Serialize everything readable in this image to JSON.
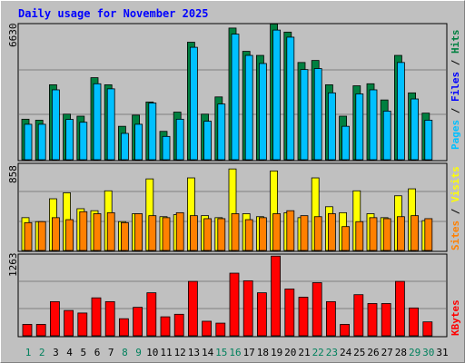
{
  "chart_data": [
    {
      "type": "bar",
      "title": "Daily usage for November 2025",
      "panel": "hits-files-pages",
      "ymax_label": "6630",
      "ymax": 6630,
      "legend": [
        "Pages",
        "Files",
        "Hits"
      ],
      "colors": {
        "hits": "#008040",
        "files": "#00c0ff",
        "pages": "#00c0ff"
      },
      "categories": [
        "1",
        "2",
        "3",
        "4",
        "5",
        "6",
        "7",
        "8",
        "9",
        "10",
        "11",
        "12",
        "13",
        "14",
        "15",
        "16",
        "17",
        "18",
        "19",
        "20",
        "21",
        "22",
        "23",
        "24",
        "25",
        "26",
        "27",
        "28",
        "29",
        "30",
        "31"
      ],
      "series": [
        {
          "name": "Hits",
          "values": [
            2000,
            1950,
            3700,
            2250,
            2150,
            4050,
            3700,
            1650,
            2200,
            2850,
            1400,
            2350,
            5800,
            2250,
            3100,
            6500,
            5350,
            5150,
            6700,
            6300,
            4800,
            4900,
            3700,
            2150,
            3650,
            3750,
            2950,
            5150,
            3300,
            2300,
            0
          ]
        },
        {
          "name": "Files",
          "values": [
            1750,
            1750,
            3450,
            1990,
            1850,
            3750,
            3500,
            1300,
            1750,
            2800,
            1150,
            2000,
            5550,
            1900,
            2750,
            6200,
            5150,
            4750,
            6400,
            6050,
            4450,
            4500,
            3300,
            1650,
            3250,
            3450,
            2400,
            4800,
            3000,
            1950,
            0
          ]
        },
        {
          "name": "Pages",
          "values": [
            1750,
            1750,
            3450,
            1990,
            1850,
            3750,
            3500,
            1300,
            1750,
            2800,
            1150,
            2000,
            5550,
            1900,
            2750,
            6200,
            5150,
            4750,
            6400,
            6050,
            4450,
            4500,
            3300,
            1650,
            3250,
            3450,
            2400,
            4800,
            3000,
            1950,
            0
          ]
        }
      ]
    },
    {
      "type": "bar",
      "panel": "visits-sites",
      "ymax_label": "858",
      "ymax": 858,
      "legend": [
        "Sites",
        "Visits"
      ],
      "colors": {
        "visits": "#ffff00",
        "sites": "#ff8000"
      },
      "series": [
        {
          "name": "Visits",
          "values": [
            330,
            290,
            520,
            580,
            420,
            400,
            600,
            290,
            370,
            720,
            340,
            360,
            730,
            350,
            330,
            820,
            370,
            340,
            800,
            380,
            330,
            730,
            440,
            380,
            600,
            370,
            330,
            550,
            620,
            300,
            0
          ]
        },
        {
          "name": "Sites",
          "values": [
            280,
            290,
            330,
            310,
            390,
            370,
            380,
            280,
            370,
            350,
            330,
            380,
            350,
            320,
            320,
            370,
            310,
            330,
            370,
            400,
            350,
            340,
            370,
            240,
            290,
            330,
            320,
            340,
            350,
            320,
            0
          ]
        }
      ]
    },
    {
      "type": "bar",
      "panel": "kbytes",
      "ymax_label": "1263",
      "ymax": 1263,
      "legend": [
        "KBytes"
      ],
      "colors": {
        "kbytes": "#ff0000"
      },
      "series": [
        {
          "name": "KBytes",
          "values": [
            180,
            180,
            540,
            400,
            360,
            600,
            540,
            270,
            450,
            680,
            300,
            340,
            860,
            230,
            200,
            990,
            870,
            680,
            1260,
            740,
            610,
            840,
            540,
            180,
            650,
            510,
            510,
            860,
            440,
            220,
            0
          ]
        }
      ]
    }
  ],
  "x_labels": {
    "weekend_days": [
      "1",
      "2",
      "8",
      "9",
      "15",
      "16",
      "22",
      "23",
      "29",
      "30"
    ],
    "weekend_color": "#00805c",
    "weekday_color": "#000000"
  }
}
